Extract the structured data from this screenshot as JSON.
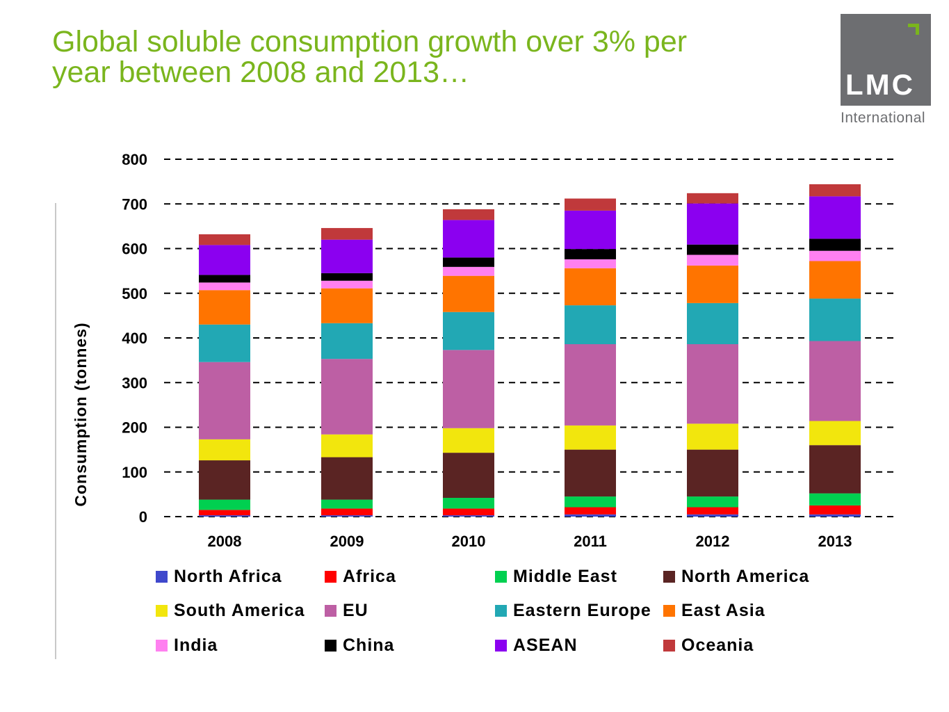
{
  "header": {
    "title_line1": "Global soluble consumption growth over 3% per",
    "title_line2": "year between 2008 and 2013…",
    "title_color": "#7ab51d"
  },
  "logo": {
    "brand": "LMC",
    "sub": "International"
  },
  "chart_data": {
    "type": "bar",
    "stacked": true,
    "title": "",
    "xlabel": "",
    "ylabel": "Consumption  (tonnes)",
    "ylim": [
      0,
      800
    ],
    "yticks": [
      0,
      100,
      200,
      300,
      400,
      500,
      600,
      700,
      800
    ],
    "grid": "horizontal dashed",
    "legend_position": "bottom",
    "categories": [
      "2008",
      "2009",
      "2010",
      "2011",
      "2012",
      "2013"
    ],
    "series": [
      {
        "name": "North Africa",
        "color": "#3f48cc",
        "values": [
          3,
          3,
          3,
          5,
          5,
          5
        ]
      },
      {
        "name": "Africa",
        "color": "#ff0000",
        "values": [
          12,
          15,
          15,
          16,
          16,
          20
        ]
      },
      {
        "name": "Middle East",
        "color": "#00d050",
        "values": [
          23,
          20,
          24,
          24,
          24,
          27
        ]
      },
      {
        "name": "North America",
        "color": "#5a2423",
        "values": [
          88,
          95,
          101,
          105,
          105,
          108
        ]
      },
      {
        "name": "South America",
        "color": "#f2e60d",
        "values": [
          47,
          51,
          55,
          54,
          58,
          54
        ]
      },
      {
        "name": "EU",
        "color": "#bd5fa4",
        "values": [
          173,
          169,
          175,
          182,
          178,
          179
        ]
      },
      {
        "name": "Eastern Europe",
        "color": "#22a8b4",
        "values": [
          84,
          80,
          85,
          87,
          92,
          95
        ]
      },
      {
        "name": "East Asia",
        "color": "#ff7400",
        "values": [
          77,
          78,
          81,
          83,
          84,
          84
        ]
      },
      {
        "name": "India",
        "color": "#ff80f0",
        "values": [
          17,
          17,
          20,
          20,
          24,
          23
        ]
      },
      {
        "name": "China",
        "color": "#000000",
        "values": [
          17,
          17,
          21,
          23,
          23,
          27
        ]
      },
      {
        "name": "ASEAN",
        "color": "#8b00f0",
        "values": [
          67,
          75,
          84,
          86,
          92,
          95
        ]
      },
      {
        "name": "Oceania",
        "color": "#c0393b",
        "values": [
          24,
          26,
          24,
          27,
          23,
          27
        ]
      }
    ]
  }
}
